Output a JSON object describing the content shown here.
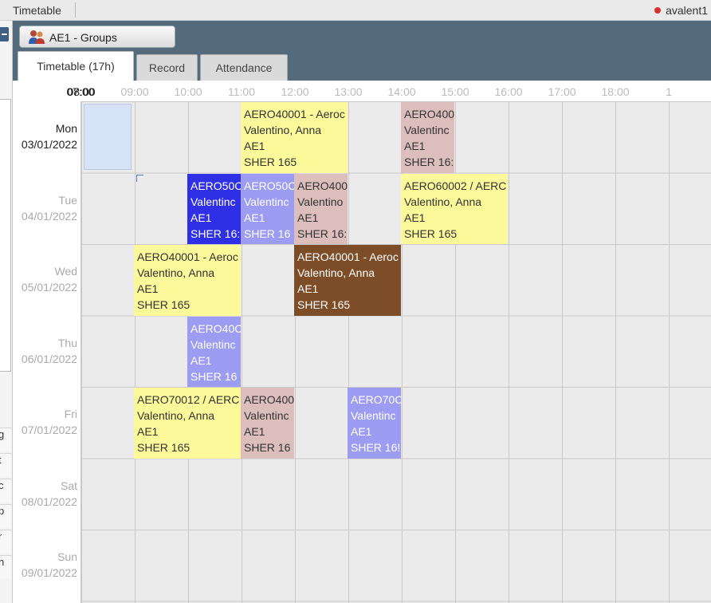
{
  "topbar": {
    "title": "Timetable",
    "user": "avalent1"
  },
  "group_tab": {
    "label": "AE1 - Groups"
  },
  "tabs": [
    {
      "label": "Timetable (17h)",
      "active": true
    },
    {
      "label": "Record",
      "active": false
    },
    {
      "label": "Attendance",
      "active": false
    }
  ],
  "left_pane": {
    "row_letters": [
      "g",
      "t",
      "c",
      "p",
      "r",
      "n"
    ]
  },
  "time_axis": {
    "labels": [
      "07:00",
      "08:00",
      "09:00",
      "10:00",
      "11:00",
      "12:00",
      "13:00",
      "14:00",
      "15:00",
      "16:00",
      "17:00",
      "18:00",
      "1"
    ],
    "emphasized": [
      "07:00",
      "08:00"
    ]
  },
  "days": [
    {
      "name": "Mon",
      "date": "03/01/2022",
      "current": true
    },
    {
      "name": "Tue",
      "date": "04/01/2022",
      "current": false
    },
    {
      "name": "Wed",
      "date": "05/01/2022",
      "current": false
    },
    {
      "name": "Thu",
      "date": "06/01/2022",
      "current": false
    },
    {
      "name": "Fri",
      "date": "07/01/2022",
      "current": false
    },
    {
      "name": "Sat",
      "date": "08/01/2022",
      "current": false
    },
    {
      "name": "Sun",
      "date": "09/01/2022",
      "current": false
    }
  ],
  "events": [
    {
      "day": 0,
      "start": "10:00",
      "end": "12:00",
      "color": "#fbf99a",
      "text_color": "#333333",
      "lines": [
        "AERO40001 - Aeroc",
        "Valentino, Anna",
        "AE1",
        "SHER 165"
      ]
    },
    {
      "day": 0,
      "start": "13:00",
      "end": "14:00",
      "color": "#dcbfbd",
      "text_color": "#333333",
      "lines": [
        "AERO400",
        "Valentinc",
        "AE1",
        "SHER 16:"
      ]
    },
    {
      "day": 1,
      "start": "09:00",
      "end": "10:00",
      "color": "#2f2fe6",
      "text_color": "#ffffff",
      "lines": [
        "AERO50C",
        "Valentinc",
        "AE1",
        "SHER 16:"
      ]
    },
    {
      "day": 1,
      "start": "10:00",
      "end": "11:00",
      "color": "#9c9cf2",
      "text_color": "#ffffff",
      "lines": [
        "AERO50C",
        "Valentinc",
        "AE1",
        "SHER 16"
      ]
    },
    {
      "day": 1,
      "start": "11:00",
      "end": "12:00",
      "color": "#dcbfbd",
      "text_color": "#333333",
      "lines": [
        "AERO400",
        "Valentino",
        "AE1",
        "SHER 16:"
      ]
    },
    {
      "day": 1,
      "start": "13:00",
      "end": "15:00",
      "color": "#fbf99a",
      "text_color": "#333333",
      "lines": [
        "AERO60002 / AERC",
        "Valentino, Anna",
        "AE1",
        "SHER 165"
      ]
    },
    {
      "day": 2,
      "start": "08:00",
      "end": "10:00",
      "color": "#fbf99a",
      "text_color": "#333333",
      "lines": [
        "AERO40001 - Aeroc",
        "Valentino, Anna",
        "AE1",
        "SHER 165"
      ]
    },
    {
      "day": 2,
      "start": "11:00",
      "end": "13:00",
      "color": "#7d4d28",
      "text_color": "#ffffff",
      "lines": [
        "AERO40001 - Aeroc",
        "Valentino, Anna",
        "AE1",
        "SHER 165"
      ]
    },
    {
      "day": 3,
      "start": "09:00",
      "end": "10:00",
      "color": "#9c9cf2",
      "text_color": "#ffffff",
      "lines": [
        "AERO40C",
        "Valentinc",
        "AE1",
        "SHER 16"
      ]
    },
    {
      "day": 4,
      "start": "08:00",
      "end": "10:00",
      "color": "#fbf99a",
      "text_color": "#333333",
      "lines": [
        "AERO70012 / AERC",
        "Valentino, Anna",
        "AE1",
        "SHER 165"
      ]
    },
    {
      "day": 4,
      "start": "10:00",
      "end": "11:00",
      "color": "#dcbfbd",
      "text_color": "#333333",
      "lines": [
        "AERO400",
        "Valentinc",
        "AE1",
        "SHER 16"
      ]
    },
    {
      "day": 4,
      "start": "12:00",
      "end": "13:00",
      "color": "#9c9cf2",
      "text_color": "#ffffff",
      "lines": [
        "AERO70C",
        "Valentinc",
        "AE1",
        "SHER 16!"
      ]
    }
  ],
  "icons": {
    "group_icon": "users-group-icon",
    "status_dot": "red-status-dot-icon"
  }
}
